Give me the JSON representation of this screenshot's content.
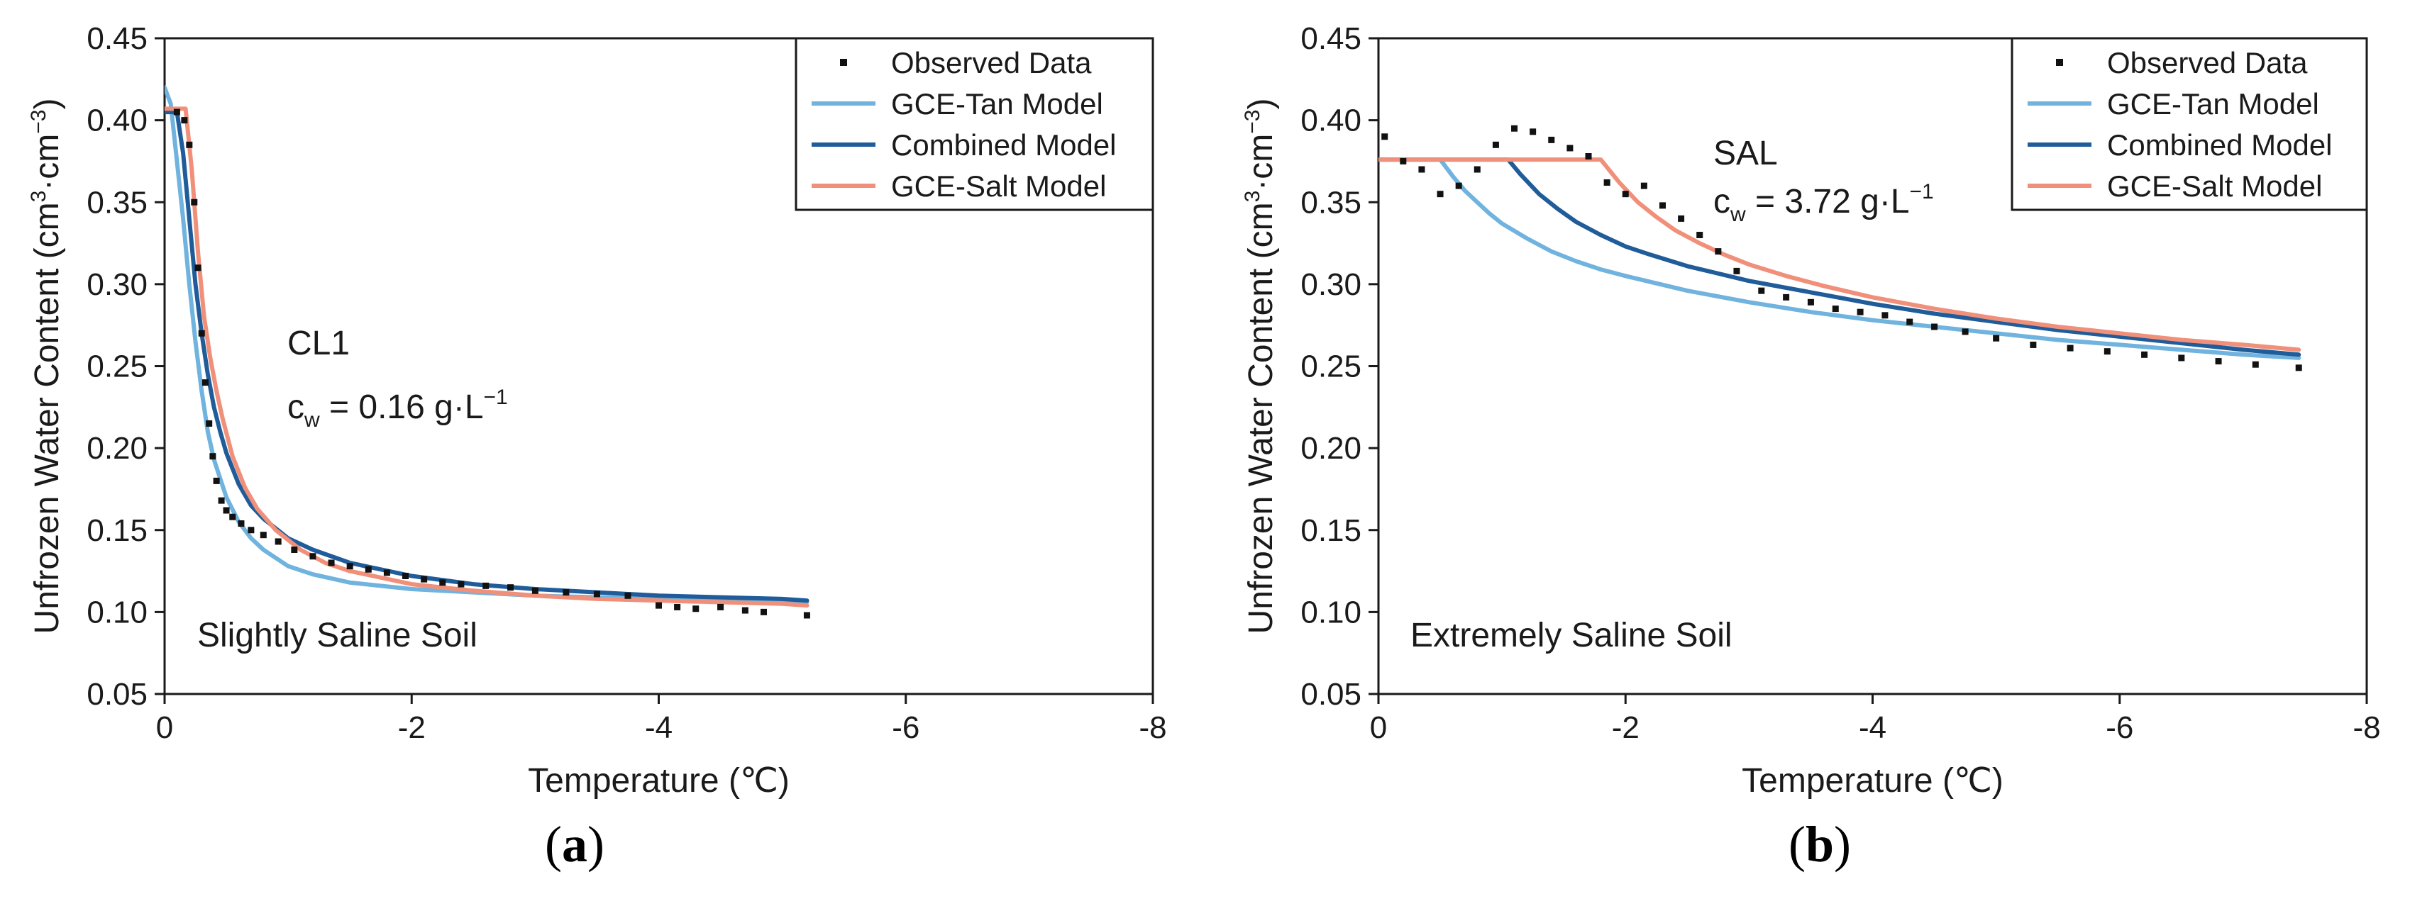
{
  "chart_data": [
    {
      "type": "line",
      "panel_label": {
        "pre": "(",
        "letter": "a",
        "post": ")"
      },
      "xlabel": "Temperature (℃)",
      "ylabel": {
        "main": "Unfrozen Water Content (cm",
        "sup1": "3",
        "mid": "·cm",
        "sup2": "−3",
        "end": ")"
      },
      "xlim": [
        0,
        -8
      ],
      "ylim": [
        0.05,
        0.45
      ],
      "xticks": [
        0,
        -2,
        -4,
        -6,
        -8
      ],
      "xtick_labels": [
        "0",
        "-2",
        "-4",
        "-6",
        "-8"
      ],
      "yticks": [
        0.05,
        0.1,
        0.15,
        0.2,
        0.25,
        0.3,
        0.35,
        0.4,
        0.45
      ],
      "ytick_labels": [
        "0.05",
        "0.10",
        "0.15",
        "0.20",
        "0.25",
        "0.30",
        "0.35",
        "0.40",
        "0.45"
      ],
      "annotations": {
        "soil": "Slightly Saline Soil",
        "sample": "CL1",
        "conc_c": "c",
        "conc_sub": "w",
        "conc_val": " = 0.16 g·L",
        "conc_sup": "−1"
      },
      "legend": {
        "placement": "top-right",
        "entries": [
          "Observed Data",
          "GCE-Tan Model",
          "Combined Model",
          "GCE-Salt Model"
        ]
      },
      "observed": {
        "name": "Observed Data",
        "x": [
          -0.1,
          -0.16,
          -0.2,
          -0.24,
          -0.27,
          -0.3,
          -0.33,
          -0.36,
          -0.39,
          -0.42,
          -0.46,
          -0.5,
          -0.55,
          -0.62,
          -0.7,
          -0.8,
          -0.92,
          -1.05,
          -1.2,
          -1.35,
          -1.5,
          -1.65,
          -1.8,
          -1.95,
          -2.1,
          -2.25,
          -2.4,
          -2.6,
          -2.8,
          -3.0,
          -3.25,
          -3.5,
          -3.75,
          -4.0,
          -4.15,
          -4.3,
          -4.5,
          -4.7,
          -4.85,
          -5.2
        ],
        "y": [
          0.405,
          0.4,
          0.385,
          0.35,
          0.31,
          0.27,
          0.24,
          0.215,
          0.195,
          0.18,
          0.168,
          0.162,
          0.158,
          0.154,
          0.15,
          0.147,
          0.143,
          0.138,
          0.134,
          0.13,
          0.128,
          0.126,
          0.124,
          0.122,
          0.12,
          0.118,
          0.117,
          0.116,
          0.115,
          0.113,
          0.112,
          0.111,
          0.11,
          0.104,
          0.103,
          0.102,
          0.103,
          0.101,
          0.1,
          0.098
        ]
      },
      "series": [
        {
          "name": "GCE-Tan Model",
          "color": "#6fb3de",
          "x": [
            0.0,
            -0.05,
            -0.1,
            -0.15,
            -0.2,
            -0.25,
            -0.3,
            -0.35,
            -0.4,
            -0.5,
            -0.6,
            -0.7,
            -0.8,
            -1.0,
            -1.2,
            -1.5,
            -2.0,
            -2.5,
            -3.0,
            -3.5,
            -4.0,
            -4.5,
            -5.0,
            -5.2
          ],
          "y": [
            0.42,
            0.41,
            0.375,
            0.34,
            0.3,
            0.265,
            0.235,
            0.21,
            0.193,
            0.17,
            0.155,
            0.145,
            0.138,
            0.128,
            0.123,
            0.118,
            0.114,
            0.112,
            0.11,
            0.109,
            0.108,
            0.107,
            0.106,
            0.106
          ]
        },
        {
          "name": "Combined Model",
          "color": "#1f5c99",
          "x": [
            0.0,
            -0.1,
            -0.15,
            -0.2,
            -0.25,
            -0.3,
            -0.35,
            -0.4,
            -0.45,
            -0.5,
            -0.6,
            -0.7,
            -0.8,
            -1.0,
            -1.2,
            -1.5,
            -2.0,
            -2.5,
            -3.0,
            -3.5,
            -4.0,
            -4.5,
            -5.0,
            -5.2
          ],
          "y": [
            0.405,
            0.405,
            0.38,
            0.34,
            0.3,
            0.27,
            0.245,
            0.225,
            0.21,
            0.197,
            0.178,
            0.165,
            0.157,
            0.145,
            0.138,
            0.13,
            0.122,
            0.117,
            0.114,
            0.112,
            0.11,
            0.109,
            0.108,
            0.107
          ]
        },
        {
          "name": "GCE-Salt Model",
          "color": "#f0907a",
          "x": [
            0.0,
            -0.1,
            -0.17,
            -0.22,
            -0.27,
            -0.32,
            -0.37,
            -0.42,
            -0.47,
            -0.55,
            -0.65,
            -0.75,
            -0.9,
            -1.1,
            -1.3,
            -1.5,
            -2.0,
            -2.5,
            -3.0,
            -3.5,
            -4.0,
            -4.5,
            -5.0,
            -5.2
          ],
          "y": [
            0.407,
            0.407,
            0.407,
            0.37,
            0.32,
            0.28,
            0.255,
            0.235,
            0.218,
            0.195,
            0.176,
            0.163,
            0.15,
            0.138,
            0.13,
            0.125,
            0.117,
            0.113,
            0.11,
            0.108,
            0.107,
            0.106,
            0.105,
            0.104
          ]
        }
      ]
    },
    {
      "type": "line",
      "panel_label": {
        "pre": "(",
        "letter": "b",
        "post": ")"
      },
      "xlabel": "Temperature (℃)",
      "ylabel": {
        "main": "Unfrozen Water Content (cm",
        "sup1": "3",
        "mid": "·cm",
        "sup2": "−3",
        "end": ")"
      },
      "xlim": [
        0,
        -8
      ],
      "ylim": [
        0.05,
        0.45
      ],
      "xticks": [
        0,
        -2,
        -4,
        -6,
        -8
      ],
      "xtick_labels": [
        "0",
        "-2",
        "-4",
        "-6",
        "-8"
      ],
      "yticks": [
        0.05,
        0.1,
        0.15,
        0.2,
        0.25,
        0.3,
        0.35,
        0.4,
        0.45
      ],
      "ytick_labels": [
        "0.05",
        "0.10",
        "0.15",
        "0.20",
        "0.25",
        "0.30",
        "0.35",
        "0.40",
        "0.45"
      ],
      "annotations": {
        "soil": "Extremely Saline Soil",
        "sample": "SAL",
        "conc_c": "c",
        "conc_sub": "w",
        "conc_val": " = 3.72 g·L",
        "conc_sup": "−1"
      },
      "legend": {
        "placement": "top-right",
        "entries": [
          "Observed Data",
          "GCE-Tan Model",
          "Combined Model",
          "GCE-Salt Model"
        ]
      },
      "observed": {
        "name": "Observed Data",
        "x": [
          -0.05,
          -0.2,
          -0.35,
          -0.5,
          -0.65,
          -0.8,
          -0.95,
          -1.1,
          -1.25,
          -1.4,
          -1.55,
          -1.7,
          -1.85,
          -2.0,
          -2.15,
          -2.3,
          -2.45,
          -2.6,
          -2.75,
          -2.9,
          -3.1,
          -3.3,
          -3.5,
          -3.7,
          -3.9,
          -4.1,
          -4.3,
          -4.5,
          -4.75,
          -5.0,
          -5.3,
          -5.6,
          -5.9,
          -6.2,
          -6.5,
          -6.8,
          -7.1,
          -7.45
        ],
        "y": [
          0.39,
          0.375,
          0.37,
          0.355,
          0.36,
          0.37,
          0.385,
          0.395,
          0.393,
          0.388,
          0.383,
          0.378,
          0.362,
          0.355,
          0.36,
          0.348,
          0.34,
          0.33,
          0.32,
          0.308,
          0.296,
          0.292,
          0.289,
          0.285,
          0.283,
          0.281,
          0.277,
          0.274,
          0.271,
          0.267,
          0.263,
          0.261,
          0.259,
          0.257,
          0.255,
          0.253,
          0.251,
          0.249
        ]
      },
      "series": [
        {
          "name": "GCE-Tan Model",
          "color": "#6fb3de",
          "x": [
            0.0,
            -0.5,
            -0.6,
            -0.7,
            -0.8,
            -0.9,
            -1.0,
            -1.2,
            -1.4,
            -1.6,
            -1.8,
            -2.0,
            -2.5,
            -3.0,
            -3.5,
            -4.0,
            -4.5,
            -5.0,
            -5.5,
            -6.0,
            -6.5,
            -7.0,
            -7.45
          ],
          "y": [
            0.376,
            0.376,
            0.366,
            0.357,
            0.35,
            0.343,
            0.337,
            0.328,
            0.32,
            0.314,
            0.309,
            0.305,
            0.296,
            0.289,
            0.283,
            0.278,
            0.274,
            0.27,
            0.266,
            0.263,
            0.26,
            0.257,
            0.255
          ]
        },
        {
          "name": "Combined Model",
          "color": "#1f5c99",
          "x": [
            0.0,
            -1.05,
            -1.15,
            -1.3,
            -1.45,
            -1.6,
            -1.8,
            -2.0,
            -2.2,
            -2.5,
            -3.0,
            -3.5,
            -4.0,
            -4.5,
            -5.0,
            -5.5,
            -6.0,
            -6.5,
            -7.0,
            -7.45
          ],
          "y": [
            0.376,
            0.376,
            0.367,
            0.355,
            0.346,
            0.338,
            0.33,
            0.323,
            0.318,
            0.311,
            0.302,
            0.295,
            0.288,
            0.282,
            0.277,
            0.272,
            0.268,
            0.264,
            0.26,
            0.257
          ]
        },
        {
          "name": "GCE-Salt Model",
          "color": "#f0907a",
          "x": [
            0.0,
            -1.8,
            -1.95,
            -2.1,
            -2.25,
            -2.4,
            -2.6,
            -2.8,
            -3.0,
            -3.3,
            -3.6,
            -4.0,
            -4.5,
            -5.0,
            -5.5,
            -6.0,
            -6.5,
            -7.0,
            -7.45
          ],
          "y": [
            0.376,
            0.376,
            0.362,
            0.35,
            0.341,
            0.333,
            0.325,
            0.318,
            0.312,
            0.305,
            0.299,
            0.292,
            0.285,
            0.279,
            0.274,
            0.27,
            0.266,
            0.263,
            0.26
          ]
        }
      ]
    }
  ]
}
